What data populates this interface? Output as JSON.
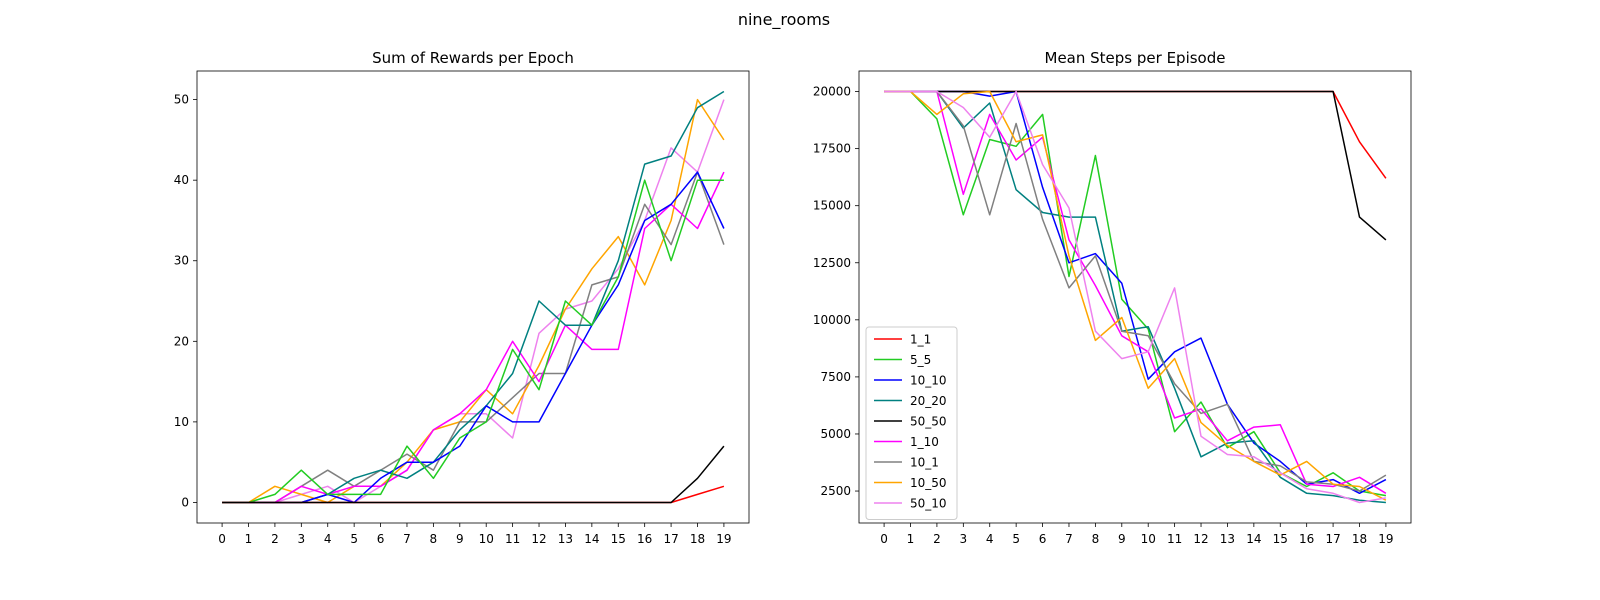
{
  "figure": {
    "suptitle": "nine_rooms"
  },
  "series_colors": {
    "1_1": "#ff0000",
    "5_5": "#22cc22",
    "10_10": "#0000ff",
    "20_20": "#008080",
    "50_50": "#000000",
    "1_10": "#ff00ff",
    "10_1": "#808080",
    "10_50": "#ffa500",
    "50_10": "#ee82ee"
  },
  "chart_data": [
    {
      "type": "line",
      "title": "Sum of Rewards per Epoch",
      "xlabel": "",
      "ylabel": "",
      "x": [
        0,
        1,
        2,
        3,
        4,
        5,
        6,
        7,
        8,
        9,
        10,
        11,
        12,
        13,
        14,
        15,
        16,
        17,
        18,
        19
      ],
      "xlim": [
        -0.95,
        19.95
      ],
      "ylim": [
        -2.55,
        53.55
      ],
      "yticks": [
        0,
        10,
        20,
        30,
        40,
        50
      ],
      "grid": false,
      "series": [
        {
          "name": "50_10",
          "values": [
            0,
            0,
            0,
            1,
            2,
            0,
            2,
            4,
            9,
            11,
            11,
            8,
            21,
            24,
            25,
            29,
            35,
            44,
            41,
            50
          ]
        },
        {
          "name": "10_50",
          "values": [
            0,
            0,
            2,
            1,
            0,
            2,
            2,
            5,
            9,
            10,
            14,
            11,
            17,
            24,
            29,
            33,
            27,
            35,
            50,
            45
          ]
        },
        {
          "name": "10_1",
          "values": [
            0,
            0,
            0,
            2,
            4,
            2,
            4,
            6,
            4,
            10,
            10,
            13,
            16,
            16,
            27,
            28,
            37,
            32,
            41,
            32
          ]
        },
        {
          "name": "1_10",
          "values": [
            0,
            0,
            0,
            2,
            1,
            2,
            2,
            4,
            9,
            11,
            14,
            20,
            15,
            22,
            19,
            19,
            34,
            37,
            34,
            41
          ]
        },
        {
          "name": "20_20",
          "values": [
            0,
            0,
            0,
            0,
            1,
            3,
            4,
            3,
            5,
            9,
            12,
            16,
            25,
            22,
            22,
            30,
            42,
            43,
            49,
            51
          ]
        },
        {
          "name": "10_10",
          "values": [
            0,
            0,
            0,
            0,
            1,
            0,
            3,
            5,
            5,
            7,
            12,
            10,
            10,
            16,
            22,
            27,
            35,
            37,
            41,
            34
          ]
        },
        {
          "name": "5_5",
          "values": [
            0,
            0,
            1,
            4,
            1,
            1,
            1,
            7,
            3,
            8,
            10,
            19,
            14,
            25,
            22,
            28,
            40,
            30,
            40,
            40
          ]
        },
        {
          "name": "1_1",
          "values": [
            0,
            0,
            0,
            0,
            0,
            0,
            0,
            0,
            0,
            0,
            0,
            0,
            0,
            0,
            0,
            0,
            0,
            0,
            1,
            2
          ]
        },
        {
          "name": "50_50",
          "values": [
            0,
            0,
            0,
            0,
            0,
            0,
            0,
            0,
            0,
            0,
            0,
            0,
            0,
            0,
            0,
            0,
            0,
            0,
            3,
            7
          ]
        }
      ]
    },
    {
      "type": "line",
      "title": "Mean Steps per Episode",
      "xlabel": "",
      "ylabel": "",
      "x": [
        0,
        1,
        2,
        3,
        4,
        5,
        6,
        7,
        8,
        9,
        10,
        11,
        12,
        13,
        14,
        15,
        16,
        17,
        18,
        19
      ],
      "xlim": [
        -0.95,
        19.95
      ],
      "ylim": [
        1100,
        20900
      ],
      "yticks": [
        2500,
        5000,
        7500,
        10000,
        12500,
        15000,
        17500,
        20000
      ],
      "grid": false,
      "legend": "lower-left",
      "series": [
        {
          "name": "1_1",
          "values": [
            20000,
            20000,
            20000,
            20000,
            20000,
            20000,
            20000,
            20000,
            20000,
            20000,
            20000,
            20000,
            20000,
            20000,
            20000,
            20000,
            20000,
            20000,
            17800,
            16200
          ]
        },
        {
          "name": "5_5",
          "values": [
            20000,
            20000,
            18800,
            14600,
            17900,
            17600,
            19000,
            11900,
            17200,
            10900,
            9600,
            5100,
            6400,
            4400,
            5100,
            3300,
            2700,
            3300,
            2500,
            2300
          ]
        },
        {
          "name": "10_10",
          "values": [
            20000,
            20000,
            20000,
            20000,
            19800,
            20000,
            15800,
            12500,
            12900,
            11600,
            7400,
            8600,
            9200,
            6300,
            4600,
            3800,
            2800,
            3000,
            2400,
            3000
          ]
        },
        {
          "name": "20_20",
          "values": [
            20000,
            20000,
            20000,
            18400,
            19500,
            15700,
            14700,
            14500,
            14500,
            9500,
            9700,
            7000,
            4000,
            4600,
            4700,
            3100,
            2400,
            2300,
            2100,
            2000
          ]
        },
        {
          "name": "50_50",
          "values": [
            20000,
            20000,
            20000,
            20000,
            20000,
            20000,
            20000,
            20000,
            20000,
            20000,
            20000,
            20000,
            20000,
            20000,
            20000,
            20000,
            20000,
            20000,
            14500,
            13500
          ]
        },
        {
          "name": "1_10",
          "values": [
            20000,
            20000,
            20000,
            15500,
            19000,
            17000,
            18000,
            13500,
            11500,
            9300,
            8600,
            5700,
            6100,
            4700,
            5300,
            5400,
            2800,
            2700,
            3100,
            2400
          ]
        },
        {
          "name": "10_1",
          "values": [
            20000,
            20000,
            20000,
            18500,
            14600,
            18600,
            14400,
            11400,
            12800,
            9500,
            9300,
            7200,
            5900,
            6300,
            3800,
            3600,
            2900,
            2800,
            2500,
            3200
          ]
        },
        {
          "name": "10_50",
          "values": [
            20000,
            20000,
            19000,
            19900,
            20000,
            17800,
            18100,
            12800,
            9100,
            10100,
            7000,
            8300,
            5500,
            4500,
            3800,
            3200,
            3800,
            2800,
            2700,
            2100
          ]
        },
        {
          "name": "50_10",
          "values": [
            20000,
            20000,
            20000,
            19300,
            18000,
            20000,
            16800,
            14900,
            9500,
            8300,
            8600,
            11400,
            4900,
            4100,
            4000,
            3300,
            2600,
            2400,
            2000,
            2200
          ]
        }
      ]
    }
  ]
}
